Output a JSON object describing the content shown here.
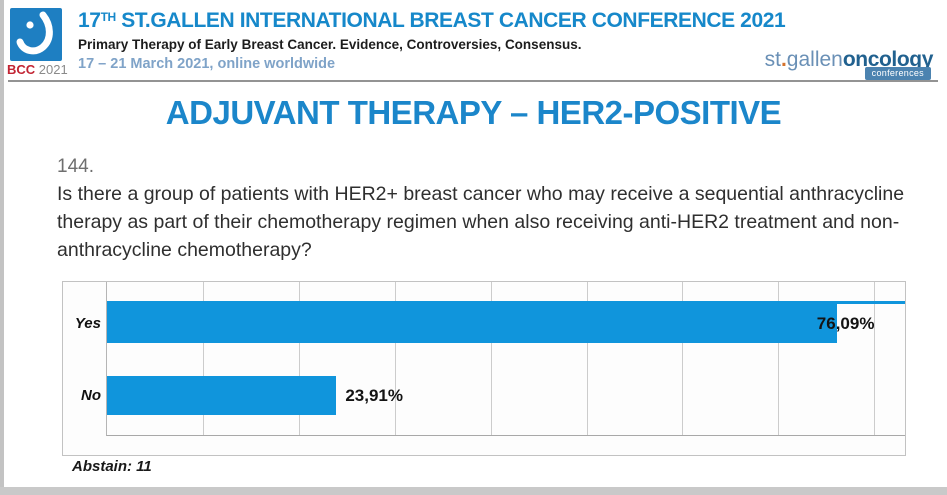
{
  "header": {
    "logo_badge": {
      "acronym": "BCC",
      "year": "2021"
    },
    "title_prefix": "17",
    "title_superscript": "TH",
    "title_main": " ST.GALLEN INTERNATIONAL BREAST CANCER CONFERENCE 2021",
    "subtitle": "Primary Therapy of Early Breast Cancer. Evidence, Controversies, Consensus.",
    "dates": "17 – 21 March 2021, online worldwide",
    "brand": {
      "st": "st",
      "dot": ".",
      "gallen": "gallen",
      "oncology": "oncology",
      "badge": "conferences"
    }
  },
  "slide": {
    "title": "ADJUVANT THERAPY – HER2-POSITIVE",
    "question_number": "144.",
    "question_text": "Is there a group of patients with HER2+ breast cancer who may receive a sequential anthracycline therapy as part of their chemotherapy regimen when also receiving anti-HER2 treatment and non-anthracycline chemotherapy?",
    "abstain_label": "Abstain: 11"
  },
  "chart_data": {
    "type": "bar",
    "orientation": "horizontal",
    "categories": [
      "Yes",
      "No"
    ],
    "values": [
      76.09,
      23.91
    ],
    "value_labels": [
      "76,09%",
      "23,91%"
    ],
    "abstain_count": 11,
    "axis_max": 83.2,
    "gridline_step": 10,
    "gridline_max": 80,
    "grid_on": true,
    "bar_color": "#1095dc",
    "legend_position": "none",
    "title": "",
    "xlabel": "",
    "ylabel": ""
  },
  "colors": {
    "accent_blue": "#1b86ca",
    "bar_blue": "#1095dc",
    "brand_orange": "#d4722c",
    "bcc_red": "#c22433"
  }
}
